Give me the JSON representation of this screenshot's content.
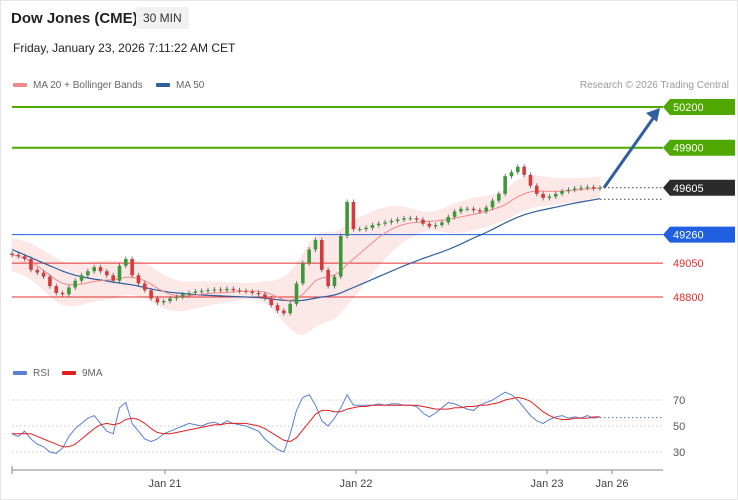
{
  "header": {
    "title": "Dow Jones (CME)",
    "timeframe": "30 MIN"
  },
  "datetime": "Friday, January 23, 2026 7:11:22 AM CET",
  "legend": {
    "ma20_label": "MA 20 + Bollinger Bands",
    "ma50_label": "MA 50",
    "ma20_color": "#f08a8a",
    "ma50_color": "#2f5f9e"
  },
  "credit": "Research © 2026 Trading Central",
  "rsi_legend": {
    "rsi_label": "RSI",
    "ma9_label": "9MA",
    "rsi_color": "#5b7fd6",
    "ma9_color": "#e02020"
  },
  "chart_data": {
    "type": "candlestick",
    "ylim": [
      48600,
      50300
    ],
    "x_ticks": [
      "Jan 21",
      "Jan 22",
      "Jan 23",
      "Jan 26"
    ],
    "levels": [
      {
        "label": "50200",
        "value": 50200,
        "color": "#4ea800",
        "kind": "resistance"
      },
      {
        "label": "49900",
        "value": 49900,
        "color": "#4ea800",
        "kind": "resistance"
      },
      {
        "label": "49605",
        "value": 49605,
        "color": "#2b2b2b",
        "kind": "last-price"
      },
      {
        "label": "49260",
        "value": 49260,
        "color": "#1f5fe0",
        "kind": "pivot"
      },
      {
        "label": "49050",
        "value": 49050,
        "color": "#e03030",
        "kind": "support"
      },
      {
        "label": "48800",
        "value": 48800,
        "color": "#e03030",
        "kind": "support"
      }
    ],
    "arrow": {
      "from": 49605,
      "to": 50200,
      "color": "#2f5f9e"
    },
    "closes": [
      49110,
      49100,
      49080,
      49000,
      48980,
      48950,
      48880,
      48830,
      48820,
      48870,
      48920,
      48960,
      48990,
      49020,
      48990,
      48960,
      48920,
      49030,
      49080,
      48960,
      48900,
      48850,
      48790,
      48760,
      48770,
      48790,
      48800,
      48820,
      48830,
      48840,
      48845,
      48850,
      48855,
      48850,
      48860,
      48850,
      48845,
      48840,
      48830,
      48820,
      48790,
      48740,
      48700,
      48680,
      48750,
      48900,
      49050,
      49150,
      49220,
      49000,
      48880,
      48950,
      49250,
      49500,
      49300,
      49300,
      49310,
      49330,
      49340,
      49350,
      49360,
      49370,
      49380,
      49380,
      49370,
      49340,
      49320,
      49330,
      49350,
      49390,
      49430,
      49450,
      49450,
      49440,
      49430,
      49460,
      49510,
      49560,
      49690,
      49720,
      49760,
      49700,
      49620,
      49560,
      49530,
      49540,
      49560,
      49580,
      49590,
      49600,
      49605,
      49610,
      49600,
      49605
    ],
    "ma20": [
      49110,
      49100,
      49085,
      49060,
      49030,
      48995,
      48960,
      48925,
      48900,
      48890,
      48890,
      48895,
      48905,
      48915,
      48920,
      48925,
      48925,
      48935,
      48945,
      48945,
      48935,
      48920,
      48895,
      48865,
      48840,
      48820,
      48810,
      48805,
      48810,
      48815,
      48820,
      48825,
      48830,
      48832,
      48835,
      48838,
      48840,
      48842,
      48843,
      48842,
      48835,
      48820,
      48800,
      48780,
      48775,
      48790,
      48820,
      48870,
      48920,
      48940,
      48950,
      48960,
      48990,
      49040,
      49080,
      49120,
      49160,
      49200,
      49240,
      49270,
      49300,
      49320,
      49335,
      49345,
      49350,
      49355,
      49358,
      49360,
      49365,
      49370,
      49380,
      49390,
      49400,
      49410,
      49420,
      49430,
      49445,
      49460,
      49480,
      49510,
      49540,
      49560,
      49575,
      49580,
      49580,
      49578,
      49578,
      49580,
      49583,
      49588,
      49592,
      49596,
      49600,
      49602
    ],
    "ma50": [
      49150,
      49130,
      49110,
      49090,
      49070,
      49050,
      49030,
      49010,
      48990,
      48975,
      48960,
      48950,
      48940,
      48932,
      48925,
      48918,
      48910,
      48903,
      48896,
      48890,
      48880,
      48870,
      48860,
      48850,
      48842,
      48835,
      48830,
      48826,
      48822,
      48818,
      48815,
      48812,
      48810,
      48808,
      48806,
      48804,
      48802,
      48800,
      48798,
      48796,
      48792,
      48786,
      48780,
      48775,
      48772,
      48772,
      48775,
      48782,
      48792,
      48800,
      48806,
      48815,
      48830,
      48850,
      48870,
      48890,
      48910,
      48930,
      48950,
      48970,
      48990,
      49010,
      49030,
      49048,
      49066,
      49084,
      49100,
      49116,
      49132,
      49150,
      49170,
      49190,
      49212,
      49235,
      49255,
      49275,
      49298,
      49322,
      49346,
      49368,
      49388,
      49406,
      49420,
      49432,
      49442,
      49452,
      49462,
      49472,
      49482,
      49492,
      49500,
      49508,
      49516,
      49524
    ],
    "bb_width": [
      120,
      125,
      130,
      135,
      140,
      150,
      155,
      160,
      160,
      160,
      158,
      155,
      150,
      150,
      148,
      145,
      140,
      135,
      130,
      130,
      130,
      130,
      130,
      128,
      125,
      120,
      115,
      110,
      105,
      100,
      95,
      90,
      85,
      80,
      75,
      70,
      65,
      60,
      62,
      68,
      80,
      100,
      130,
      170,
      210,
      260,
      300,
      330,
      340,
      340,
      330,
      320,
      310,
      300,
      290,
      270,
      250,
      230,
      210,
      190,
      170,
      150,
      130,
      110,
      90,
      75,
      70,
      75,
      85,
      100,
      110,
      115,
      120,
      120,
      118,
      115,
      112,
      110,
      115,
      120,
      125,
      125,
      120,
      115,
      110,
      105,
      100,
      95,
      90,
      88,
      86,
      85,
      85,
      85
    ],
    "rsi": [
      44,
      42,
      46,
      40,
      36,
      34,
      30,
      29,
      33,
      42,
      48,
      52,
      56,
      58,
      52,
      46,
      44,
      64,
      68,
      52,
      46,
      40,
      38,
      40,
      44,
      46,
      48,
      50,
      52,
      51,
      50,
      52,
      53,
      51,
      54,
      52,
      51,
      50,
      48,
      46,
      40,
      36,
      32,
      30,
      44,
      62,
      72,
      74,
      66,
      54,
      50,
      56,
      64,
      74,
      66,
      66,
      66,
      66,
      67,
      66,
      67,
      67,
      66,
      66,
      65,
      60,
      57,
      60,
      64,
      68,
      67,
      65,
      63,
      62,
      66,
      68,
      70,
      73,
      76,
      74,
      70,
      64,
      58,
      54,
      52,
      55,
      57,
      58,
      56,
      57,
      56,
      58,
      56,
      57
    ],
    "rsi_ma9": [
      44,
      44,
      44,
      44,
      42,
      40,
      38,
      36,
      34,
      34,
      36,
      40,
      44,
      48,
      51,
      52,
      51,
      52,
      55,
      56,
      55,
      52,
      48,
      45,
      44,
      44,
      45,
      46,
      47,
      48,
      49,
      50,
      51,
      51,
      52,
      52,
      52,
      52,
      51,
      50,
      48,
      45,
      42,
      39,
      38,
      41,
      47,
      53,
      59,
      62,
      62,
      61,
      61,
      63,
      64,
      65,
      65,
      66,
      66,
      66,
      66,
      66,
      66,
      66,
      66,
      65,
      64,
      63,
      63,
      63,
      64,
      64,
      65,
      65,
      66,
      66,
      67,
      68,
      70,
      71,
      72,
      71,
      69,
      65,
      61,
      58,
      56,
      55,
      55,
      56,
      56,
      56,
      57,
      57
    ],
    "rsi_ylim": [
      20,
      80
    ],
    "rsi_ticks": [
      70,
      50,
      30
    ]
  }
}
